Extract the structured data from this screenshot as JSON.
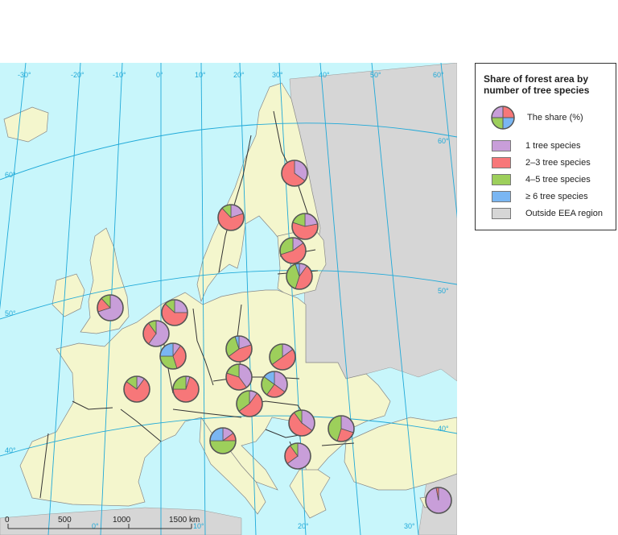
{
  "legend": {
    "title": "Share of forest area by number of tree species",
    "pie_label": "The share (%)",
    "items": [
      {
        "label": "1 tree species",
        "color": "#c89ed9"
      },
      {
        "label": "2–3 tree species",
        "color": "#f77779"
      },
      {
        "label": "4–5 tree species",
        "color": "#9dcf5b"
      },
      {
        "label": "≥ 6 tree species",
        "color": "#7ab6f2"
      },
      {
        "label": "Outside EEA region",
        "color": "#d6d6d6"
      }
    ]
  },
  "colors": {
    "sea": "#c8f6fb",
    "land_eea": "#f4f6cd",
    "land_outside": "#d6d6d6",
    "graticule": "#1fa9d8",
    "border": "#333333"
  },
  "graticule_labels": {
    "longitude_top": [
      "-30°",
      "-20°",
      "-10°",
      "0°",
      "10°",
      "20°",
      "30°",
      "40°",
      "50°",
      "60°"
    ],
    "latitude_left": [
      "60°",
      "50°",
      "40°"
    ],
    "latitude_right": [
      "60°",
      "50°",
      "40°"
    ],
    "longitude_bottom": [
      "0°",
      "10°",
      "20°",
      "30°"
    ]
  },
  "scale_bar": {
    "ticks": [
      "0",
      "500",
      "1000",
      "1500 km"
    ]
  },
  "pies": [
    {
      "name": "finland",
      "shares": [
        35,
        65,
        0,
        0
      ]
    },
    {
      "name": "sweden",
      "shares": [
        20,
        68,
        12,
        0
      ]
    },
    {
      "name": "estonia",
      "shares": [
        22,
        58,
        20,
        0
      ]
    },
    {
      "name": "latvia",
      "shares": [
        15,
        55,
        30,
        0
      ]
    },
    {
      "name": "lithuania",
      "shares": [
        10,
        45,
        40,
        5
      ]
    },
    {
      "name": "united-kingdom",
      "shares": [
        70,
        18,
        12,
        0
      ]
    },
    {
      "name": "netherlands",
      "shares": [
        25,
        62,
        13,
        0
      ]
    },
    {
      "name": "belgium",
      "shares": [
        60,
        30,
        10,
        0
      ]
    },
    {
      "name": "luxembourg",
      "shares": [
        10,
        35,
        30,
        25
      ]
    },
    {
      "name": "czechia",
      "shares": [
        20,
        45,
        30,
        5
      ]
    },
    {
      "name": "slovakia",
      "shares": [
        15,
        50,
        35,
        0
      ]
    },
    {
      "name": "austria",
      "shares": [
        40,
        40,
        20,
        0
      ]
    },
    {
      "name": "hungary",
      "shares": [
        35,
        25,
        25,
        15
      ]
    },
    {
      "name": "france",
      "shares": [
        10,
        75,
        15,
        0
      ]
    },
    {
      "name": "switzerland",
      "shares": [
        5,
        70,
        25,
        0
      ]
    },
    {
      "name": "croatia",
      "shares": [
        10,
        55,
        35,
        0
      ]
    },
    {
      "name": "serbia",
      "shares": [
        35,
        55,
        10,
        0
      ]
    },
    {
      "name": "bulgaria",
      "shares": [
        30,
        25,
        45,
        0
      ]
    },
    {
      "name": "italy",
      "shares": [
        15,
        10,
        50,
        25
      ]
    },
    {
      "name": "greece",
      "shares": [
        65,
        25,
        10,
        0
      ]
    },
    {
      "name": "cyprus",
      "shares": [
        97,
        3,
        0,
        0
      ]
    }
  ]
}
